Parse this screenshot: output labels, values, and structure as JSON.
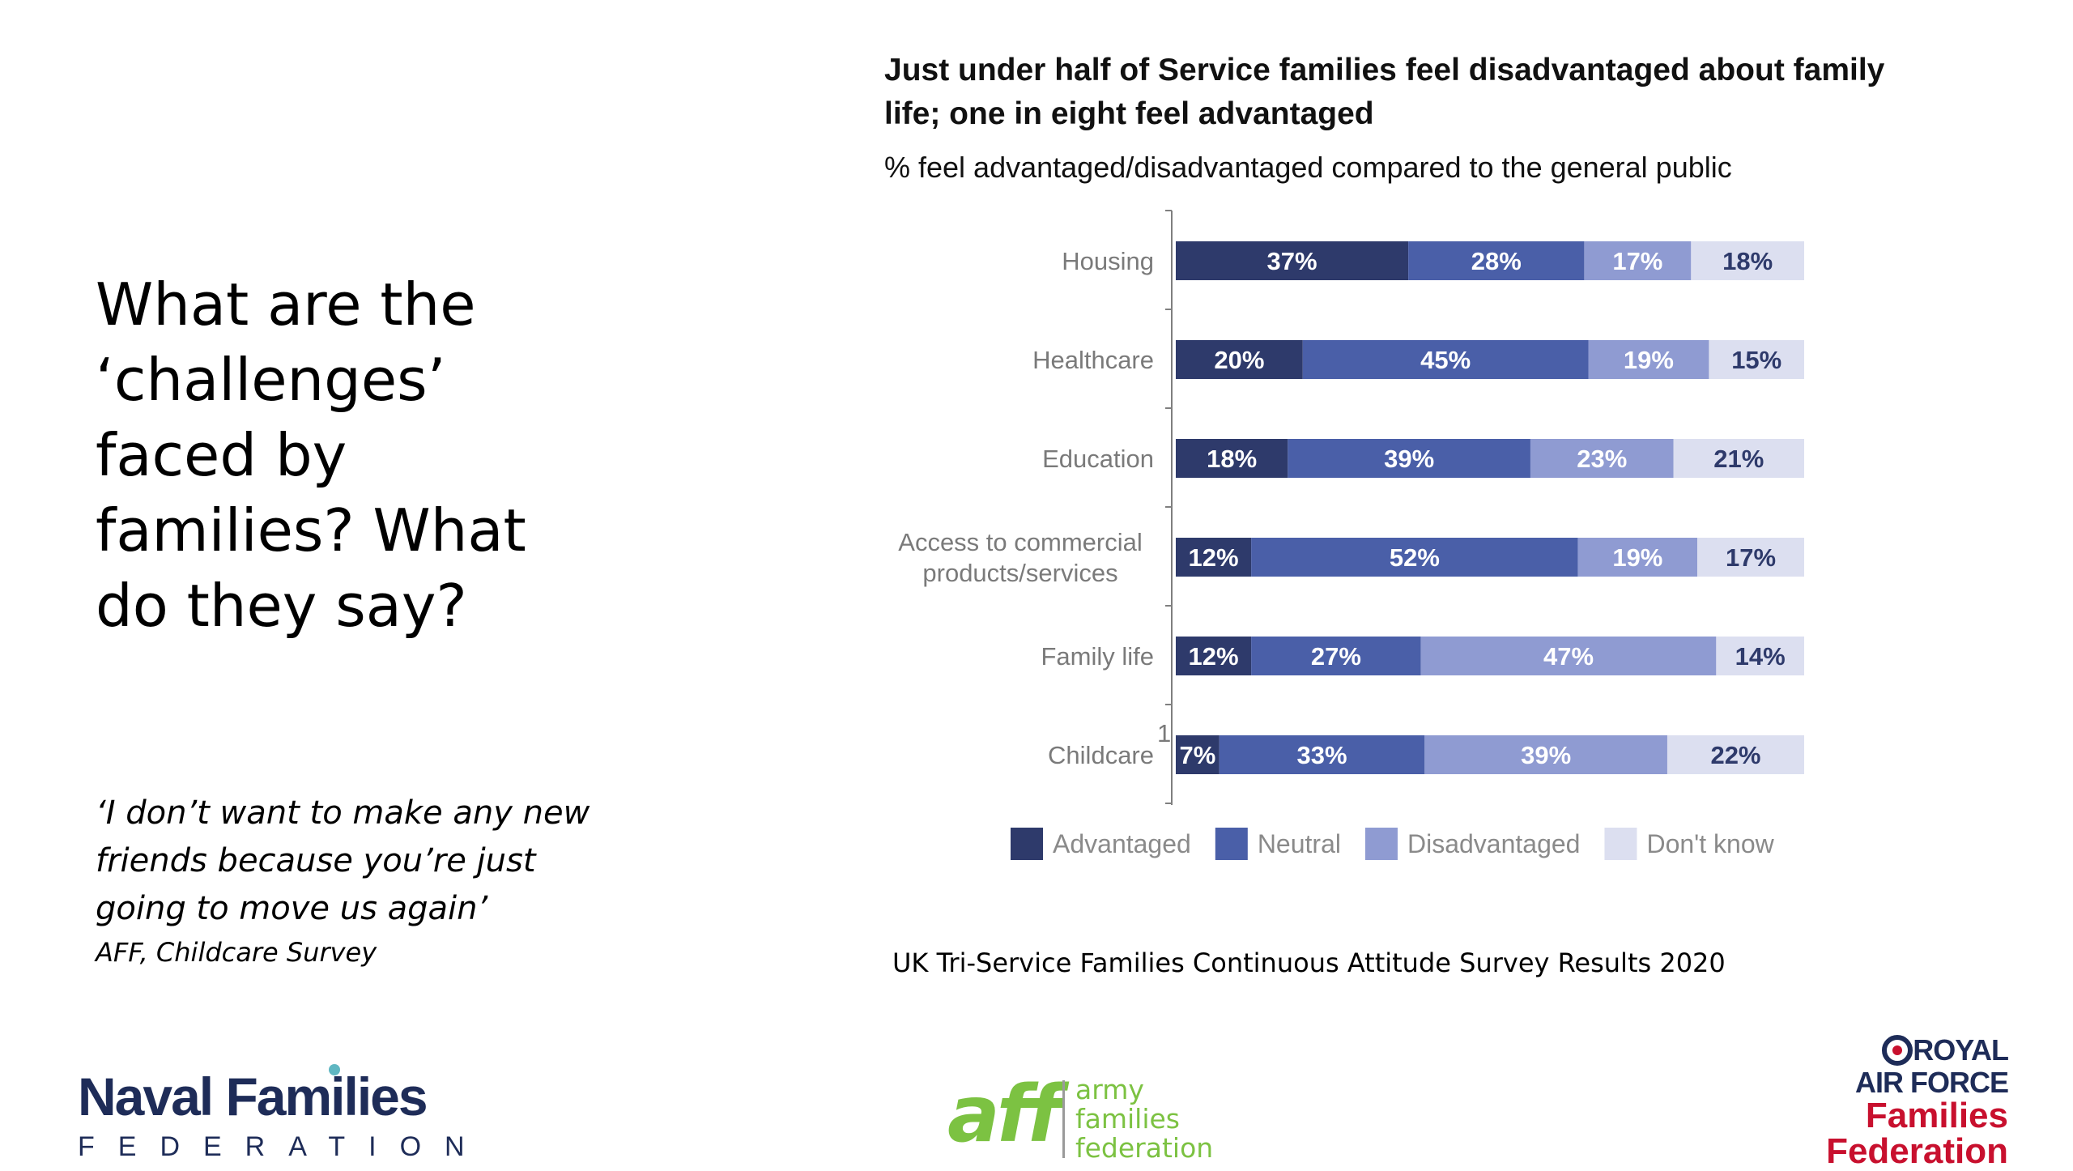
{
  "question": "What are the ‘challenges’ faced by families?  What do they say?",
  "quote": "‘I don’t want to make any new friends because you’re just going to move us again’",
  "quote_source": "AFF, Childcare Survey",
  "source_caption": "UK Tri-Service Families Continuous Attitude Survey Results 2020",
  "chart_data": {
    "type": "bar",
    "stacked": true,
    "orientation": "horizontal",
    "title": "Just under half of Service families feel disadvantaged about family life; one in eight feel advantaged",
    "subtitle": "% feel advantaged/disadvantaged compared to the general public",
    "categories": [
      {
        "label_lines": [
          "Housing"
        ],
        "footnote": ""
      },
      {
        "label_lines": [
          "Healthcare"
        ],
        "footnote": ""
      },
      {
        "label_lines": [
          "Education"
        ],
        "footnote": ""
      },
      {
        "label_lines": [
          "Access to commercial",
          "products/services"
        ],
        "footnote": ""
      },
      {
        "label_lines": [
          "Family life"
        ],
        "footnote": ""
      },
      {
        "label_lines": [
          "Childcare"
        ],
        "footnote": "1"
      }
    ],
    "value_suffix": "%",
    "series": [
      {
        "name": "Advantaged",
        "color": "#2e3a6b",
        "values": [
          37,
          20,
          18,
          12,
          12,
          7
        ]
      },
      {
        "name": "Neutral",
        "color": "#4a5fa8",
        "values": [
          28,
          45,
          39,
          52,
          27,
          33
        ]
      },
      {
        "name": "Disadvantaged",
        "color": "#8f9bd2",
        "values": [
          17,
          19,
          23,
          19,
          47,
          39
        ]
      },
      {
        "name": "Don't know",
        "color": "#dcdff0",
        "values": [
          18,
          15,
          21,
          17,
          14,
          22
        ]
      }
    ],
    "legend_position": "bottom"
  },
  "logos": {
    "naval": {
      "main": "Naval Families",
      "sub": "FEDERATION"
    },
    "aff": {
      "mark": "aff",
      "lines": [
        "army",
        "families",
        "federation"
      ]
    },
    "raf": {
      "royal": "ROYAL",
      "airforce": "AIR FORCE",
      "families": "Families",
      "federation": "Federation"
    }
  }
}
